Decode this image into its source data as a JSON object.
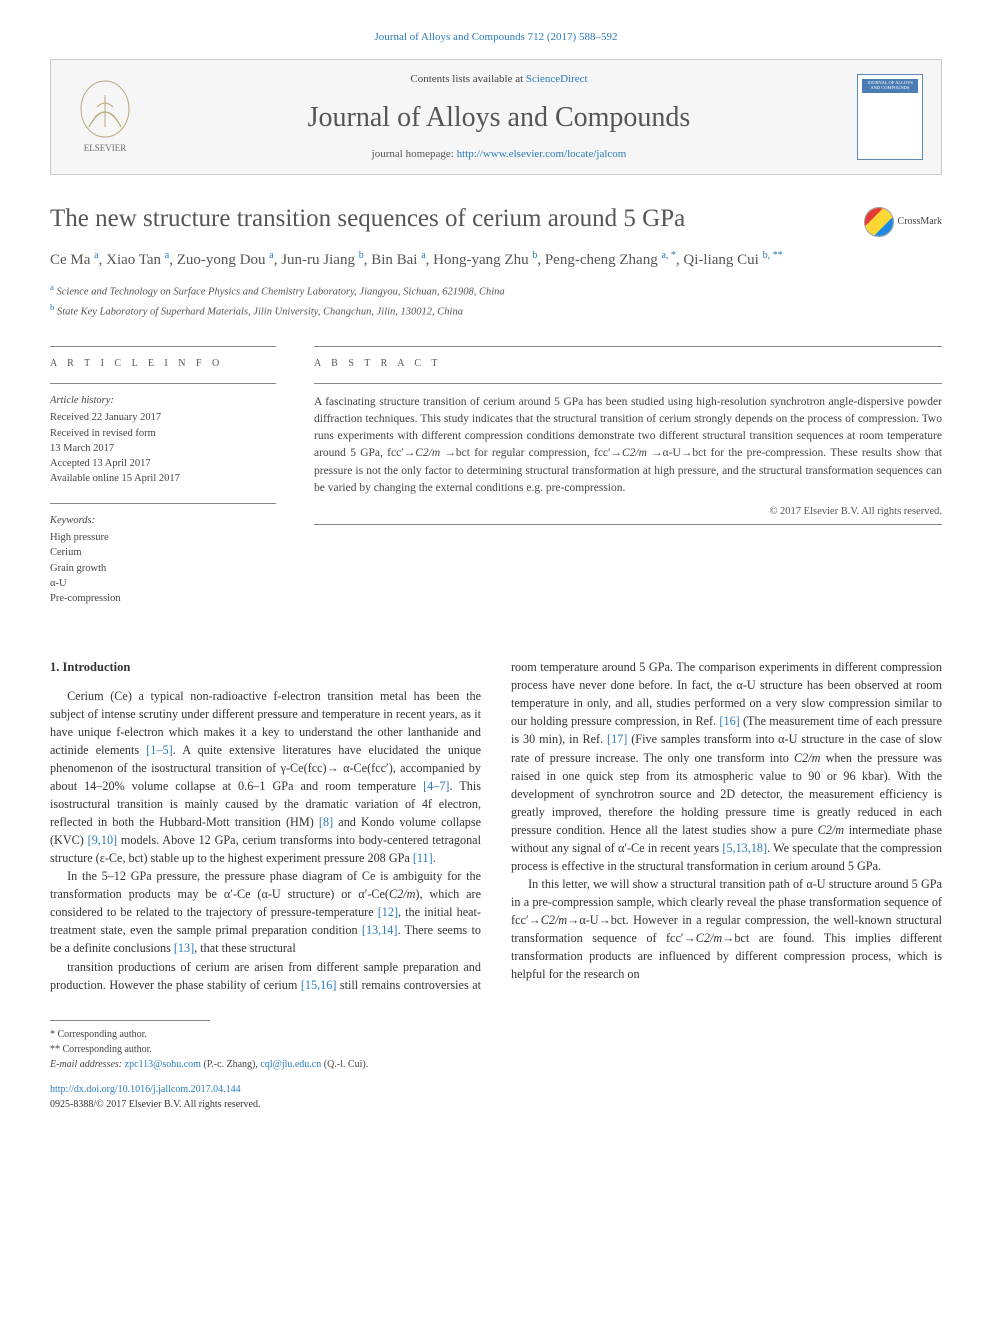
{
  "citation": "Journal of Alloys and Compounds 712 (2017) 588–592",
  "header": {
    "contents_prefix": "Contents lists available at ",
    "contents_link": "ScienceDirect",
    "journal_name": "Journal of Alloys and Compounds",
    "homepage_prefix": "journal homepage: ",
    "homepage_url": "http://www.elsevier.com/locate/jalcom",
    "cover_label": "JOURNAL OF ALLOYS AND COMPOUNDS"
  },
  "crossmark_label": "CrossMark",
  "title": "The new structure transition sequences of cerium around 5 GPa",
  "authors_html": "Ce Ma <sup>a</sup>, Xiao Tan <sup>a</sup>, Zuo-yong Dou <sup>a</sup>, Jun-ru Jiang <sup>b</sup>, Bin Bai <sup>a</sup>, Hong-yang Zhu <sup>b</sup>, Peng-cheng Zhang <sup>a, *</sup>, Qi-liang Cui <sup>b, **</sup>",
  "affiliations": {
    "a": "Science and Technology on Surface Physics and Chemistry Laboratory, Jiangyou, Sichuan, 621908, China",
    "b": "State Key Laboratory of Superhard Materials, Jilin University, Changchun, Jilin, 130012, China"
  },
  "article_info": {
    "label": "A R T I C L E  I N F O",
    "history_label": "Article history:",
    "history": "Received 22 January 2017\nReceived in revised form\n13 March 2017\nAccepted 13 April 2017\nAvailable online 15 April 2017",
    "keywords_label": "Keywords:",
    "keywords": "High pressure\nCerium\nGrain growth\nα-U\nPre-compression"
  },
  "abstract": {
    "label": "A B S T R A C T",
    "text": "A fascinating structure transition of cerium around 5 GPa has been studied using high-resolution synchrotron angle-dispersive powder diffraction techniques. This study indicates that the structural transition of cerium strongly depends on the process of compression. Two runs experiments with different compression conditions demonstrate two different structural transition sequences at room temperature around 5 GPa, fcc′→C2/m →bct for regular compression, fcc′→C2/m →α-U→bct for the pre-compression. These results show that pressure is not the only factor to determining structural transformation at high pressure, and the structural transformation sequences can be varied by changing the external conditions e.g. pre-compression.",
    "copyright": "© 2017 Elsevier B.V. All rights reserved."
  },
  "section1": {
    "heading": "1. Introduction",
    "p1": "Cerium (Ce) a typical non-radioactive f-electron transition metal has been the subject of intense scrutiny under different pressure and temperature in recent years, as it have unique f-electron which makes it a key to understand the other lanthanide and actinide elements [1–5]. A quite extensive literatures have elucidated the unique phenomenon of the isostructural transition of γ-Ce(fcc)→ α-Ce(fcc′), accompanied by about 14–20% volume collapse at 0.6–1 GPa and room temperature [4–7]. This isostructural transition is mainly caused by the dramatic variation of 4f electron, reflected in both the Hubbard-Mott transition (HM) [8] and Kondo volume collapse (KVC) [9,10] models. Above 12 GPa, cerium transforms into body-centered tetragonal structure (ε-Ce, bct) stable up to the highest experiment pressure 208 GPa [11].",
    "p2": "In the 5–12 GPa pressure, the pressure phase diagram of Ce is ambiguity for the transformation products may be α′-Ce (α-U structure) or α′-Ce(C2/m), which are considered to be related to the trajectory of pressure-temperature [12], the initial heat-treatment state, even the sample primal preparation condition [13,14]. There seems to be a definite conclusions [13], that these structural",
    "p3": "transition productions of cerium are arisen from different sample preparation and production. However the phase stability of cerium [15,16] still remains controversies at room temperature around 5 GPa. The comparison experiments in different compression process have never done before. In fact, the α-U structure has been observed at room temperature in only, and all, studies performed on a very slow compression similar to our holding pressure compression, in Ref. [16] (The measurement time of each pressure is 30 min), in Ref. [17] (Five samples transform into α-U structure in the case of slow rate of pressure increase. The only one transform into C2/m when the pressure was raised in one quick step from its atmospheric value to 90 or 96 kbar). With the development of synchrotron source and 2D detector, the measurement efficiency is greatly improved, therefore the holding pressure time is greatly reduced in each pressure condition. Hence all the latest studies show a pure C2/m intermediate phase without any signal of α′-Ce in recent years [5,13,18]. We speculate that the compression process is effective in the structural transformation in cerium around 5 GPa.",
    "p4": "In this letter, we will show a structural transition path of α-U structure around 5 GPa in a pre-compression sample, which clearly reveal the phase transformation sequence of fcc′→C2/m→α-U→bct. However in a regular compression, the well-known structural transformation sequence of fcc′→C2/m→bct are found. This implies different transformation products are influenced by different compression process, which is helpful for the research on"
  },
  "footnotes": {
    "corr1": "* Corresponding author.",
    "corr2": "** Corresponding author.",
    "email_label": "E-mail addresses: ",
    "email1": "zpc113@sohu.com",
    "email1_who": " (P.-c. Zhang), ",
    "email2": "cql@jlu.edu.cn",
    "email2_who": " (Q.-l. Cui)."
  },
  "doi": {
    "url": "http://dx.doi.org/10.1016/j.jallcom.2017.04.144",
    "issn": "0925-8388/© 2017 Elsevier B.V. All rights reserved."
  },
  "colors": {
    "link": "#2b7bb9",
    "text": "#333333",
    "muted": "#565656",
    "rule": "#888888",
    "header_bg": "#f6f6f6"
  },
  "typography": {
    "body_pt": 12.2,
    "title_pt": 25,
    "journal_name_pt": 28,
    "abstract_pt": 11.5,
    "info_pt": 10.5,
    "footnote_pt": 10
  }
}
